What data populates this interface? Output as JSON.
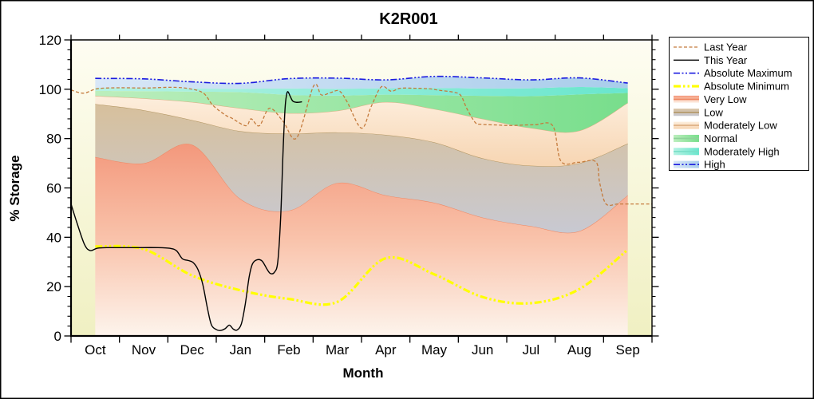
{
  "window": {
    "background": "#ffffff",
    "border_color": "#000000"
  },
  "title": "K2R001",
  "chart_data": {
    "type": "area",
    "title": "K2R001",
    "xlabel": "Month",
    "ylabel": "% Storage",
    "ylim": [
      0,
      120
    ],
    "y_major_step": 20,
    "y_minor_step": 4,
    "y_tick_labels": [
      "0",
      "20",
      "40",
      "60",
      "80",
      "100",
      "120"
    ],
    "x_tick_labels": [
      "Oct",
      "Nov",
      "Dec",
      "Jan",
      "Feb",
      "Mar",
      "Apr",
      "May",
      "Jun",
      "Jul",
      "Aug",
      "Sep"
    ],
    "x_months": 12,
    "grid": "off",
    "legend_position": "top-right",
    "plot_bg": [
      "#fefdf2",
      "#f0f0c2"
    ],
    "band_x": [
      0.5,
      1.5,
      2.5,
      3.5,
      4.5,
      5.5,
      6.5,
      7.5,
      8.5,
      9.5,
      10.5,
      11.5
    ],
    "bands": [
      {
        "name": "Very Low",
        "upper": [
          72.5,
          70,
          77.5,
          55.5,
          50.8,
          62,
          57,
          54,
          48,
          44.5,
          42.5,
          57
        ],
        "fill": [
          "#f3987c",
          "#f9c3ab",
          "#fdf4ec"
        ],
        "dir": "v",
        "stroke": "#ee8762",
        "sample_line": "#ee8762"
      },
      {
        "name": "Low",
        "upper": [
          94,
          91.5,
          87.5,
          83,
          82,
          82.5,
          81.5,
          78.5,
          72,
          69,
          70,
          78
        ],
        "fill": [
          "#d7c09c",
          "#c8c9d2"
        ],
        "dir": "v",
        "stroke": "#b1945f",
        "sample_line": "#b1945f"
      },
      {
        "name": "Moderately Low",
        "upper": [
          97.3,
          96.3,
          94.8,
          92.3,
          90.3,
          91.3,
          94.8,
          92,
          88,
          84.3,
          83.2,
          94.5
        ],
        "fill": [
          "#fdeedd",
          "#f7d5b2"
        ],
        "dir": "v",
        "stroke": "#dcae82",
        "sample_line": "#dcae82"
      },
      {
        "name": "Normal",
        "upper": [
          99.3,
          99.2,
          99,
          98.8,
          97.7,
          97.4,
          97.8,
          97.6,
          97.3,
          97.2,
          97.9,
          98.5
        ],
        "fill": [
          "#bceebd",
          "#78de8c"
        ],
        "dir": "h",
        "stroke": "none",
        "sample_line": "#8fd29a"
      },
      {
        "name": "Moderately High",
        "upper": [
          100.6,
          100.5,
          100.3,
          100.2,
          100.3,
          100.2,
          100.4,
          100.5,
          100.3,
          100.4,
          100.9,
          100.4
        ],
        "fill": [
          "#b6f2e3",
          "#69e6cd"
        ],
        "dir": "h",
        "stroke": "none",
        "sample_line": "#7adfc8"
      },
      {
        "name": "High",
        "upper": [
          104.4,
          104.2,
          103,
          102.4,
          104.3,
          104.5,
          103.8,
          105.2,
          104.6,
          103.8,
          104.6,
          102.5
        ],
        "fill": [
          "#d8e7f7",
          "#a9cdeb"
        ],
        "dir": "h",
        "stroke": "none",
        "sample_line": "none"
      }
    ],
    "series": [
      {
        "name": "Last Year",
        "color": "#c47a3c",
        "width": 1.3,
        "dash": "4 2.5",
        "smooth": true,
        "x": [
          0,
          0.26,
          0.54,
          1.0,
          1.55,
          2.08,
          2.42,
          2.73,
          2.93,
          3.19,
          3.31,
          3.61,
          3.72,
          3.89,
          4.1,
          4.38,
          4.66,
          5.01,
          5.17,
          5.37,
          5.54,
          5.7,
          6.0,
          6.2,
          6.41,
          6.61,
          6.8,
          7.1,
          7.4,
          7.6,
          7.9,
          8.05,
          8.18,
          8.35,
          8.47,
          8.8,
          9.08,
          9.57,
          9.95,
          10.12,
          10.48,
          10.84,
          10.92,
          11.05,
          11.3,
          11.65,
          12
        ],
        "y": [
          99.7,
          98.4,
          100.2,
          100.6,
          100.5,
          100.8,
          100.3,
          98.5,
          93.5,
          89.5,
          88.4,
          85.2,
          88,
          85.2,
          92.3,
          87,
          80.3,
          101.3,
          97.7,
          98.7,
          99.3,
          95,
          84.2,
          93,
          101,
          99.2,
          100.4,
          100.4,
          100.2,
          99.6,
          98.8,
          97.5,
          92,
          86.5,
          85.8,
          85.5,
          85.3,
          85.6,
          85.2,
          70.8,
          70.4,
          70.6,
          62,
          53.5,
          53.5,
          53.5,
          53.5
        ]
      },
      {
        "name": "This Year",
        "color": "#000000",
        "width": 1.4,
        "dash": "",
        "smooth": true,
        "x": [
          0,
          0.12,
          0.28,
          0.4,
          0.55,
          0.8,
          1.3,
          1.8,
          2.05,
          2.18,
          2.3,
          2.42,
          2.52,
          2.62,
          2.72,
          2.82,
          2.9,
          3.0,
          3.08,
          3.18,
          3.27,
          3.35,
          3.43,
          3.52,
          3.6,
          3.68,
          3.75,
          3.85,
          3.95,
          4.05,
          4.12,
          4.2,
          4.27,
          4.33,
          4.38,
          4.42,
          4.45,
          4.48,
          4.53,
          4.58,
          4.65,
          4.77
        ],
        "y": [
          53.5,
          46,
          37,
          34.6,
          35.6,
          35.8,
          35.8,
          35.8,
          35.5,
          34.5,
          31.3,
          30.6,
          29.8,
          27,
          21,
          11,
          4.5,
          2.6,
          2.2,
          2.9,
          4.4,
          2.8,
          2.4,
          5,
          13,
          24,
          29.3,
          30.9,
          30.3,
          27,
          25.3,
          25.8,
          30,
          48,
          75,
          92,
          97.5,
          99,
          97,
          95.2,
          94.7,
          94.9
        ]
      },
      {
        "name": "Absolute Maximum",
        "color": "#1c1ce0",
        "width": 1.6,
        "dash": "8 2.5 2 2.5 2 2.5",
        "smooth": true,
        "x": [
          0.5,
          1.5,
          2.5,
          3.5,
          4.5,
          5.5,
          6.5,
          7.5,
          8.5,
          9.5,
          10.5,
          11.5
        ],
        "y": [
          104.4,
          104.2,
          103,
          102.4,
          104.3,
          104.5,
          103.8,
          105.2,
          104.6,
          103.8,
          104.6,
          102.5
        ]
      },
      {
        "name": "Absolute Minimum",
        "color": "#ffff00",
        "width": 3.2,
        "dash": "9 3 2.5 3 2.5 3",
        "smooth": true,
        "x": [
          0.5,
          1.5,
          2.5,
          3.5,
          4.5,
          5.5,
          6.5,
          7.5,
          8.5,
          9.5,
          10.5,
          11.5
        ],
        "y": [
          36.3,
          35.2,
          24.5,
          18.5,
          15,
          13.8,
          31.5,
          25,
          15.8,
          13.3,
          19,
          35
        ]
      }
    ]
  },
  "legend": {
    "items": [
      {
        "label": "Last Year",
        "ref": "series",
        "idx": 0
      },
      {
        "label": "This Year",
        "ref": "series",
        "idx": 1
      },
      {
        "label": "Absolute Maximum",
        "ref": "series",
        "idx": 2
      },
      {
        "label": "Absolute Minimum",
        "ref": "series",
        "idx": 3
      },
      {
        "label": "Very Low",
        "ref": "band",
        "idx": 0
      },
      {
        "label": "Low",
        "ref": "band",
        "idx": 1
      },
      {
        "label": "Moderately Low",
        "ref": "band",
        "idx": 2
      },
      {
        "label": "Normal",
        "ref": "band",
        "idx": 3
      },
      {
        "label": "Moderately High",
        "ref": "band",
        "idx": 4
      },
      {
        "label": "High",
        "ref": "band",
        "idx": 5,
        "line_idx": 2
      }
    ]
  }
}
